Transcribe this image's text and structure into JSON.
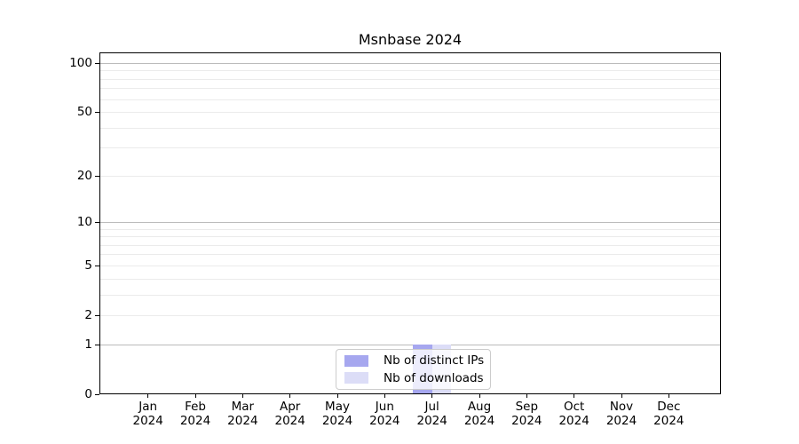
{
  "window": {
    "background": "#ffffff"
  },
  "chart_data": {
    "type": "bar",
    "title": "Msnbase 2024",
    "categories": [
      "Jan 2024",
      "Feb 2024",
      "Mar 2024",
      "Apr 2024",
      "May 2024",
      "Jun 2024",
      "Jul 2024",
      "Aug 2024",
      "Sep 2024",
      "Oct 2024",
      "Nov 2024",
      "Dec 2024"
    ],
    "series": [
      {
        "name": "Nb of distinct IPs",
        "color": "#a6a7ef",
        "values": [
          0,
          0,
          0,
          0,
          0,
          0,
          1,
          0,
          0,
          0,
          0,
          0
        ]
      },
      {
        "name": "Nb of downloads",
        "color": "#dcddf7",
        "values": [
          0,
          0,
          0,
          0,
          0,
          0,
          1,
          0,
          0,
          0,
          0,
          0
        ]
      }
    ],
    "yscale": "log1p",
    "yticks": [
      0,
      1,
      2,
      5,
      10,
      20,
      50,
      100
    ],
    "ylim": [
      0,
      117
    ],
    "xlabel": "",
    "ylabel": "",
    "grid": "both",
    "legend_position": "bottom-center"
  },
  "colors": {
    "major_grid": "#bbbbbb",
    "minor_grid": "#ebebeb",
    "axis": "#000000",
    "legend_border": "#cccccc",
    "text": "#000000"
  }
}
